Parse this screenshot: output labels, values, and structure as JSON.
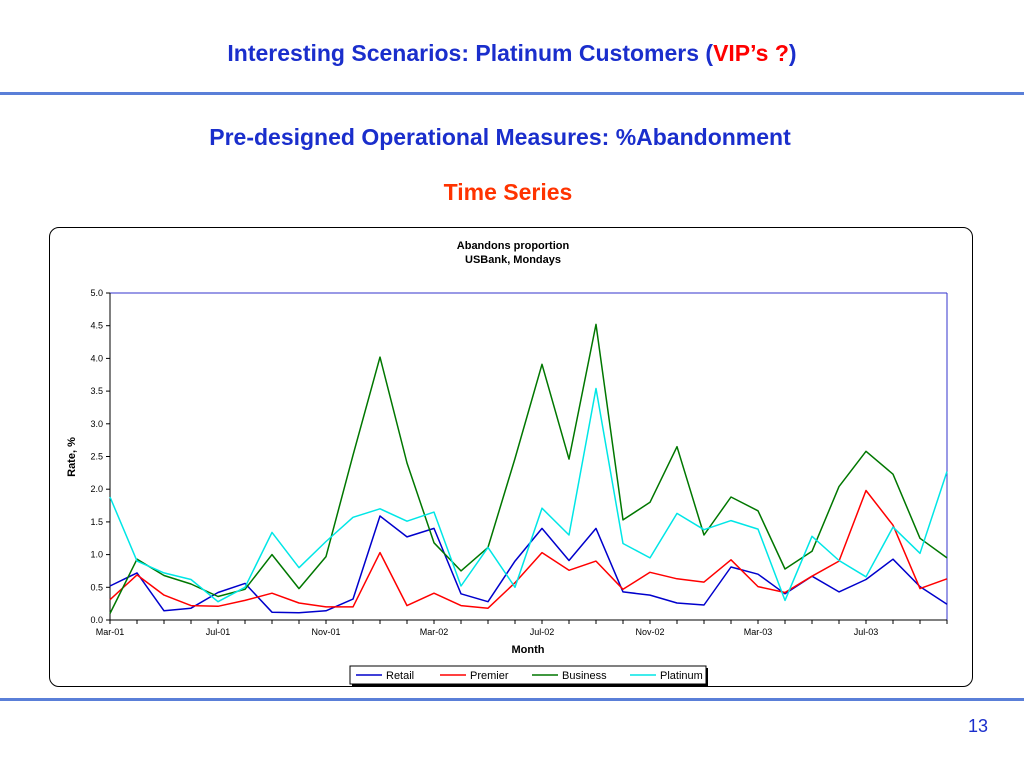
{
  "slide": {
    "title_main": "Interesting Scenarios: Platinum Customers (",
    "title_accent": "VIP’s ?",
    "title_end": ")",
    "subtitle": "Pre-designed Operational Measures: %Abandonment",
    "subsubtitle": "Time Series",
    "page_number": "13"
  },
  "chart_data": {
    "type": "line",
    "title": "Abandons proportion",
    "subtitle": "USBank, Mondays",
    "xlabel": "Month",
    "ylabel": "Rate, %",
    "ylim": [
      0,
      5
    ],
    "yticks": [
      "0.0",
      "0.5",
      "1.0",
      "1.5",
      "2.0",
      "2.5",
      "3.0",
      "3.5",
      "4.0",
      "4.5",
      "5.0"
    ],
    "xticks": [
      "Mar-01",
      "Jul-01",
      "Nov-01",
      "Mar-02",
      "Jul-02",
      "Nov-02",
      "Mar-03",
      "Jul-03"
    ],
    "x": [
      "Mar-01",
      "Apr-01",
      "May-01",
      "Jun-01",
      "Jul-01",
      "Aug-01",
      "Sep-01",
      "Oct-01",
      "Nov-01",
      "Dec-01",
      "Jan-02",
      "Feb-02",
      "Mar-02",
      "Apr-02",
      "May-02",
      "Jun-02",
      "Jul-02",
      "Aug-02",
      "Sep-02",
      "Oct-02",
      "Nov-02",
      "Dec-02",
      "Jan-03",
      "Feb-03",
      "Mar-03",
      "Apr-03",
      "May-03",
      "Jun-03",
      "Jul-03",
      "Aug-03",
      "Sep-03",
      "Oct-03"
    ],
    "grid": false,
    "legend_position": "bottom",
    "series": [
      {
        "name": "Retail",
        "color": "#0000cc",
        "values": [
          0.52,
          0.72,
          0.14,
          0.18,
          0.42,
          0.56,
          0.12,
          0.11,
          0.14,
          0.32,
          1.59,
          1.27,
          1.4,
          0.4,
          0.28,
          0.9,
          1.4,
          0.91,
          1.4,
          0.43,
          0.38,
          0.26,
          0.23,
          0.81,
          0.7,
          0.4,
          0.67,
          0.43,
          0.62,
          0.93,
          0.51,
          0.24
        ]
      },
      {
        "name": "Premier",
        "color": "#ff0000",
        "values": [
          0.31,
          0.69,
          0.38,
          0.22,
          0.21,
          0.3,
          0.41,
          0.26,
          0.2,
          0.2,
          1.03,
          0.22,
          0.41,
          0.22,
          0.18,
          0.57,
          1.03,
          0.76,
          0.9,
          0.47,
          0.73,
          0.63,
          0.58,
          0.92,
          0.51,
          0.42,
          0.67,
          0.9,
          1.98,
          1.45,
          0.48,
          0.63
        ]
      },
      {
        "name": "Business",
        "color": "#007700",
        "values": [
          0.1,
          0.93,
          0.68,
          0.55,
          0.36,
          0.47,
          1.0,
          0.48,
          0.97,
          2.52,
          4.02,
          2.4,
          1.18,
          0.75,
          1.11,
          2.47,
          3.91,
          2.46,
          4.52,
          1.53,
          1.8,
          2.65,
          1.3,
          1.88,
          1.67,
          0.78,
          1.05,
          2.04,
          2.58,
          2.23,
          1.25,
          0.95
        ]
      },
      {
        "name": "Platinum",
        "color": "#00e6e6",
        "values": [
          1.88,
          0.9,
          0.72,
          0.62,
          0.28,
          0.5,
          1.34,
          0.8,
          1.2,
          1.57,
          1.7,
          1.51,
          1.65,
          0.52,
          1.11,
          0.5,
          1.71,
          1.3,
          3.54,
          1.17,
          0.95,
          1.63,
          1.38,
          1.52,
          1.39,
          0.3,
          1.28,
          0.91,
          0.66,
          1.42,
          1.02,
          2.27
        ]
      }
    ]
  }
}
